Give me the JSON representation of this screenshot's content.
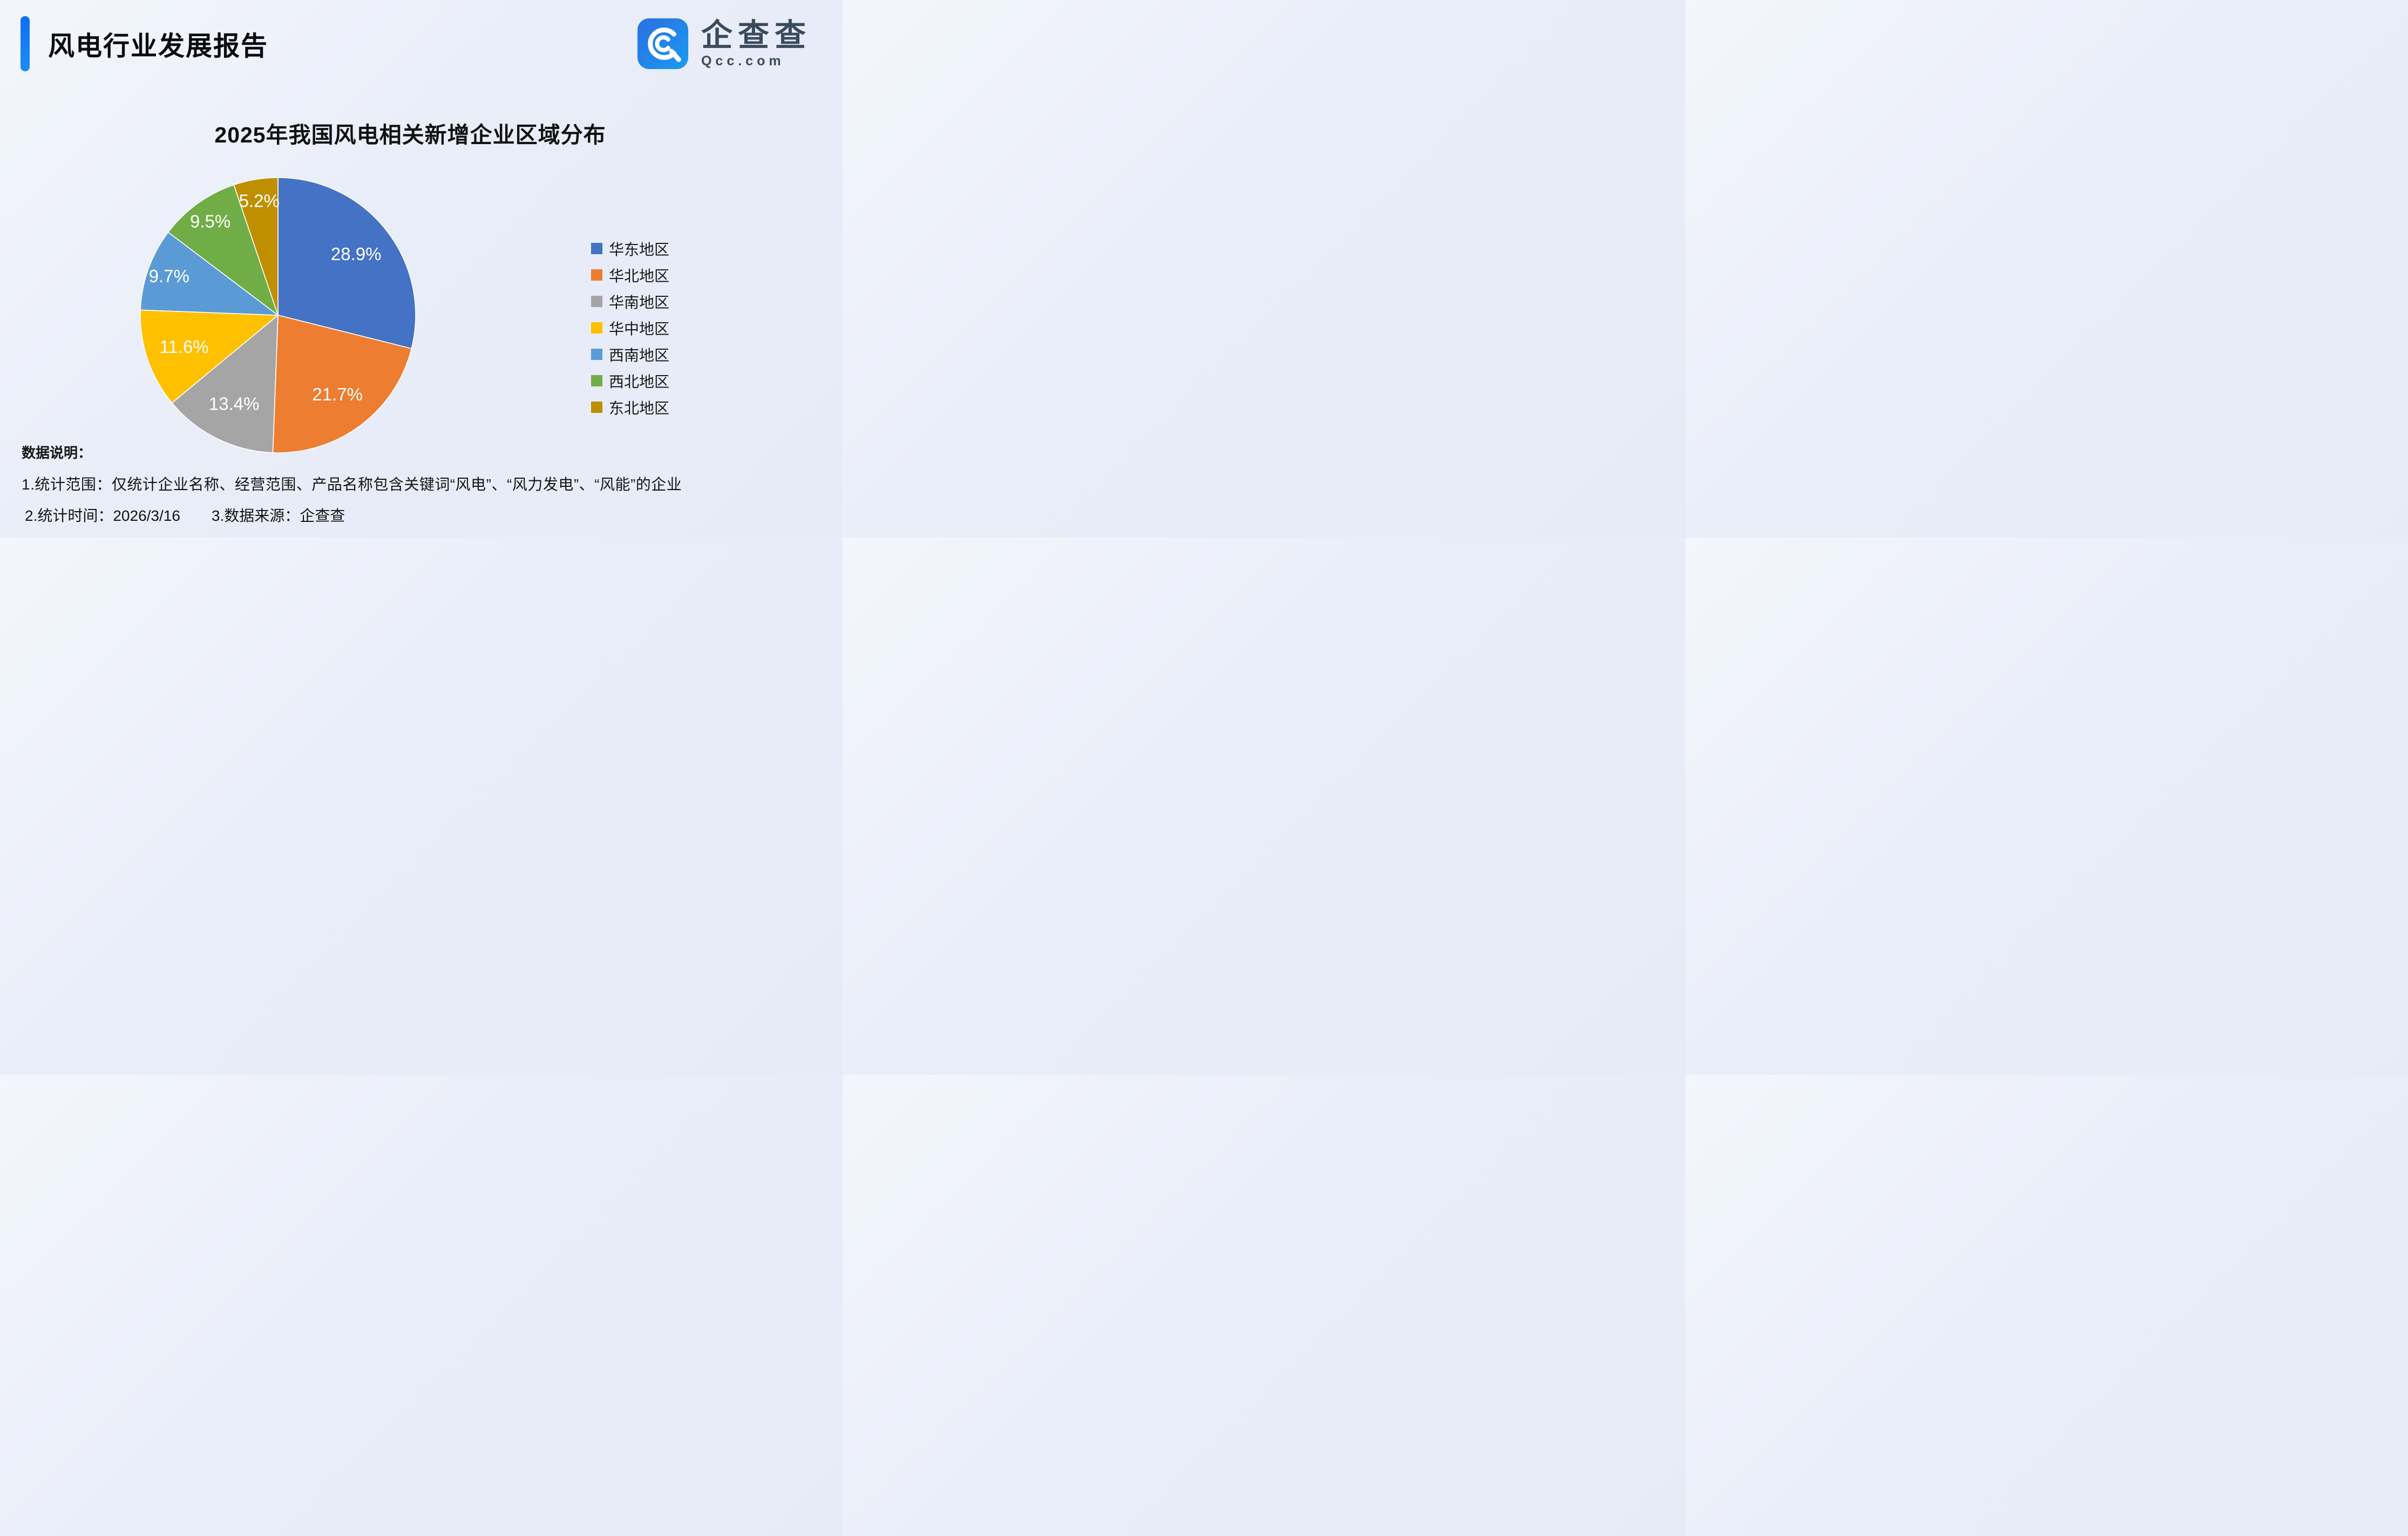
{
  "header": {
    "title": "风电行业发展报告"
  },
  "logo": {
    "brand": "企查查",
    "domain": "Qcc.com"
  },
  "chart_data": {
    "type": "pie",
    "title": "2025年我国风电相关新增企业区域分布",
    "labels": [
      "华东地区",
      "华北地区",
      "华南地区",
      "华中地区",
      "西南地区",
      "西北地区",
      "东北地区"
    ],
    "values": [
      28.9,
      21.7,
      13.4,
      11.6,
      9.7,
      9.5,
      5.2
    ],
    "value_labels": [
      "28.9%",
      "21.7%",
      "13.4%",
      "11.6%",
      "9.7%",
      "9.5%",
      "5.2%"
    ],
    "colors": [
      "#4472C4",
      "#ED7D31",
      "#A5A5A5",
      "#FFC000",
      "#5B9BD5",
      "#70AD47",
      "#BF8F00"
    ],
    "legend_position": "right",
    "start_angle_deg": 0,
    "direction": "clockwise",
    "unit": "%"
  },
  "footer": {
    "heading": "数据说明：",
    "line1": "1.统计范围：仅统计企业名称、经营范围、产品名称包含关键词“风电”、“风力发电”、“风能”的企业",
    "line2_time": "2.统计时间：2026/3/16",
    "line2_source": "3.数据来源：企查查"
  },
  "theme": {
    "accent_blue": "#1677f5",
    "logo_blue": "#1e8af0",
    "background": "#e9edf8",
    "text_dark": "#111111"
  }
}
